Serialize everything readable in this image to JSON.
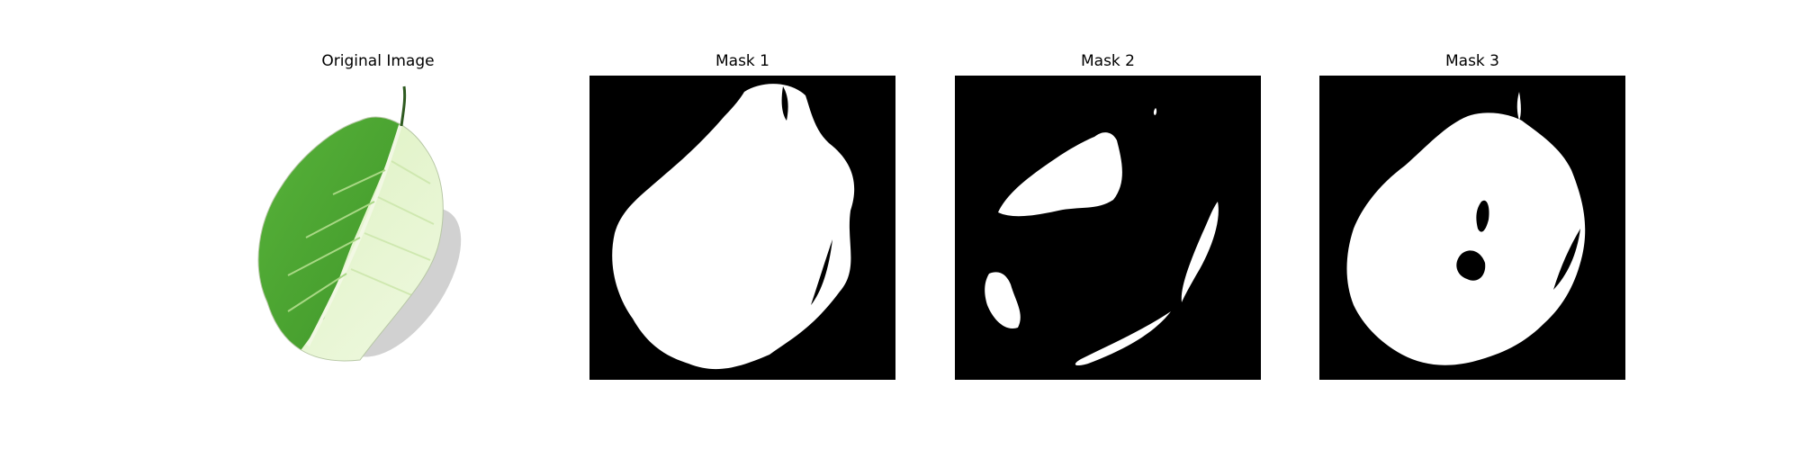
{
  "figure": {
    "panels": [
      {
        "title": "Original Image"
      },
      {
        "title": "Mask 1"
      },
      {
        "title": "Mask 2"
      },
      {
        "title": "Mask 3"
      }
    ]
  },
  "colors": {
    "background": "#ffffff",
    "mask_background": "#000000",
    "mask_foreground": "#ffffff",
    "leaf_dark_green": "#3f9a2c",
    "leaf_light_green": "#e3f3c8"
  }
}
